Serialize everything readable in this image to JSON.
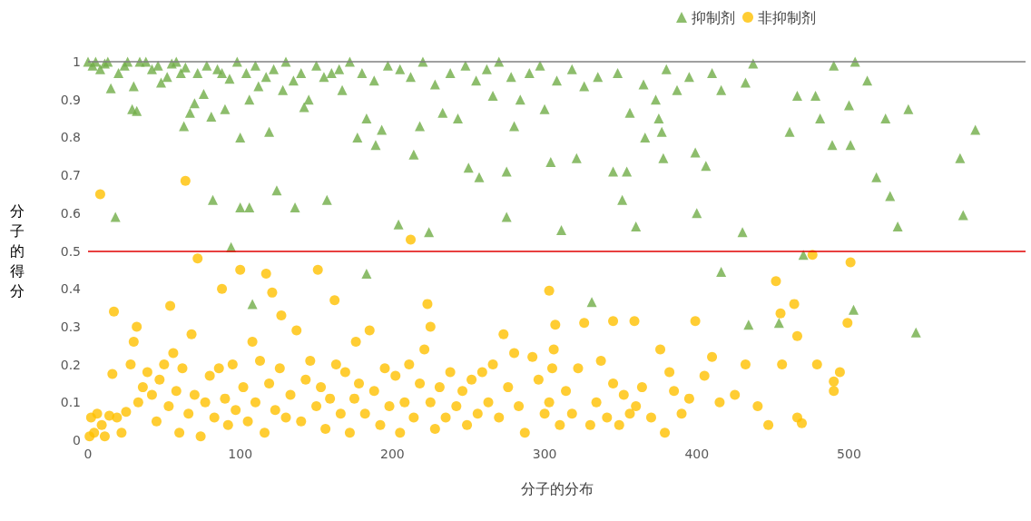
{
  "chart_data": {
    "type": "scatter",
    "xlabel": "分子的分布",
    "ylabel": "分子的得分",
    "xlim": [
      0,
      616
    ],
    "xticks": [
      0,
      100,
      200,
      300,
      400,
      500
    ],
    "ylim": [
      0,
      1
    ],
    "yticks": [
      0,
      0.1,
      0.2,
      0.3,
      0.4,
      0.5,
      0.6,
      0.7,
      0.8,
      0.9,
      1
    ],
    "grid": false,
    "legend": "top",
    "ref_lines": [
      {
        "axis": "y",
        "value": 0.5,
        "color": "#e00000"
      },
      {
        "axis": "y",
        "value": 1,
        "color": "#808080"
      }
    ],
    "series": [
      {
        "name": "抑制剂",
        "color": "#70ad47",
        "marker": "triangle",
        "x": [
          0,
          5,
          11,
          15,
          18,
          26,
          29,
          32,
          30,
          38,
          48,
          55,
          61,
          63,
          67,
          70,
          76,
          81,
          82,
          88,
          90,
          94,
          100,
          100,
          106,
          106,
          108,
          112,
          119,
          124,
          128,
          136,
          142,
          145,
          157,
          160,
          167,
          177,
          183,
          183,
          189,
          193,
          204,
          214,
          218,
          224,
          233,
          243,
          250,
          257,
          266,
          275,
          275,
          280,
          284,
          300,
          304,
          311,
          321,
          326,
          331,
          345,
          351,
          354,
          356,
          360,
          366,
          373,
          375,
          377,
          378,
          387,
          399,
          400,
          406,
          416,
          416,
          430,
          432,
          434,
          437,
          454,
          461,
          466,
          470,
          478,
          481,
          489,
          490,
          500,
          501,
          504,
          503,
          512,
          518,
          524,
          527,
          532,
          539,
          544,
          573,
          575,
          583,
          3,
          8,
          13,
          20,
          24,
          34,
          42,
          46,
          52,
          58,
          64,
          72,
          78,
          85,
          93,
          98,
          104,
          110,
          117,
          122,
          130,
          135,
          140,
          150,
          155,
          165,
          172,
          180,
          188,
          197,
          205,
          212,
          220,
          228,
          238,
          248,
          255,
          262,
          270,
          278,
          290,
          297,
          308,
          318,
          335,
          348,
          365,
          380,
          395,
          410
        ],
        "values": [
          1,
          1,
          0.995,
          0.93,
          0.59,
          1,
          0.875,
          0.87,
          0.935,
          1,
          0.945,
          0.995,
          0.97,
          0.83,
          0.865,
          0.89,
          0.915,
          0.855,
          0.635,
          0.97,
          0.875,
          0.51,
          0.8,
          0.615,
          0.615,
          0.9,
          0.36,
          0.935,
          0.815,
          0.66,
          0.925,
          0.615,
          0.88,
          0.9,
          0.635,
          0.97,
          0.925,
          0.8,
          0.85,
          0.44,
          0.78,
          0.82,
          0.57,
          0.755,
          0.83,
          0.55,
          0.865,
          0.85,
          0.72,
          0.695,
          0.91,
          0.59,
          0.71,
          0.83,
          0.9,
          0.875,
          0.735,
          0.555,
          0.745,
          0.935,
          0.365,
          0.71,
          0.635,
          0.71,
          0.865,
          0.565,
          0.8,
          0.9,
          0.85,
          0.815,
          0.745,
          0.925,
          0.76,
          0.6,
          0.725,
          0.445,
          0.925,
          0.55,
          0.945,
          0.305,
          0.995,
          0.31,
          0.815,
          0.91,
          0.49,
          0.91,
          0.85,
          0.78,
          0.99,
          0.885,
          0.78,
          1,
          0.345,
          0.95,
          0.695,
          0.85,
          0.645,
          0.565,
          0.875,
          0.285,
          0.745,
          0.595,
          0.82,
          0.99,
          0.98,
          1,
          0.97,
          0.99,
          1,
          0.98,
          0.99,
          0.96,
          1,
          0.985,
          0.97,
          0.99,
          0.98,
          0.955,
          1,
          0.97,
          0.99,
          0.96,
          0.98,
          1,
          0.95,
          0.97,
          0.99,
          0.96,
          0.98,
          1,
          0.97,
          0.95,
          0.99,
          0.98,
          0.96,
          1,
          0.94,
          0.97,
          0.99,
          0.95,
          0.98,
          1,
          0.96,
          0.97,
          0.99,
          0.95,
          0.98,
          0.96,
          0.97,
          0.94,
          0.98,
          0.96,
          0.97
        ]
      },
      {
        "name": "非抑制剂",
        "color": "#ffc000",
        "marker": "circle",
        "x": [
          8,
          64,
          212,
          17,
          32,
          54,
          72,
          100,
          88,
          117,
          121,
          127,
          151,
          162,
          176,
          223,
          225,
          305,
          307,
          345,
          359,
          399,
          303,
          464,
          499,
          501,
          476,
          452,
          455,
          456,
          466,
          466,
          469,
          479,
          490,
          494,
          490,
          1,
          2,
          4,
          6,
          9,
          11,
          14,
          16,
          19,
          22,
          25,
          28,
          30,
          33,
          36,
          39,
          42,
          45,
          47,
          50,
          53,
          56,
          58,
          60,
          62,
          66,
          68,
          70,
          74,
          77,
          80,
          83,
          86,
          90,
          92,
          95,
          97,
          102,
          105,
          108,
          110,
          113,
          116,
          119,
          123,
          126,
          130,
          133,
          137,
          140,
          143,
          146,
          150,
          153,
          156,
          159,
          163,
          166,
          169,
          172,
          175,
          178,
          182,
          185,
          188,
          192,
          195,
          198,
          202,
          205,
          208,
          211,
          214,
          218,
          221,
          225,
          228,
          231,
          235,
          238,
          242,
          246,
          249,
          252,
          256,
          259,
          263,
          266,
          270,
          273,
          276,
          280,
          283,
          287,
          292,
          296,
          300,
          303,
          306,
          310,
          314,
          318,
          322,
          326,
          330,
          334,
          337,
          341,
          345,
          349,
          352,
          356,
          360,
          364,
          370,
          376,
          379,
          382,
          385,
          390,
          395,
          405,
          410,
          415,
          425,
          432,
          440,
          447
        ],
        "values": [
          0.65,
          0.685,
          0.53,
          0.34,
          0.3,
          0.355,
          0.48,
          0.45,
          0.4,
          0.44,
          0.39,
          0.33,
          0.45,
          0.37,
          0.26,
          0.36,
          0.3,
          0.19,
          0.305,
          0.315,
          0.315,
          0.315,
          0.395,
          0.36,
          0.31,
          0.47,
          0.49,
          0.42,
          0.335,
          0.2,
          0.275,
          0.06,
          0.045,
          0.2,
          0.155,
          0.18,
          0.13,
          0.01,
          0.06,
          0.02,
          0.07,
          0.04,
          0.01,
          0.065,
          0.175,
          0.06,
          0.02,
          0.075,
          0.2,
          0.26,
          0.1,
          0.14,
          0.18,
          0.12,
          0.05,
          0.16,
          0.2,
          0.09,
          0.23,
          0.13,
          0.02,
          0.19,
          0.07,
          0.28,
          0.12,
          0.01,
          0.1,
          0.17,
          0.06,
          0.19,
          0.11,
          0.04,
          0.2,
          0.08,
          0.14,
          0.05,
          0.26,
          0.1,
          0.21,
          0.02,
          0.15,
          0.08,
          0.19,
          0.06,
          0.12,
          0.29,
          0.05,
          0.16,
          0.21,
          0.09,
          0.14,
          0.03,
          0.11,
          0.2,
          0.07,
          0.18,
          0.02,
          0.11,
          0.15,
          0.07,
          0.29,
          0.13,
          0.04,
          0.19,
          0.09,
          0.17,
          0.02,
          0.1,
          0.2,
          0.06,
          0.15,
          0.24,
          0.1,
          0.03,
          0.14,
          0.06,
          0.18,
          0.09,
          0.13,
          0.04,
          0.16,
          0.07,
          0.18,
          0.1,
          0.2,
          0.06,
          0.28,
          0.14,
          0.23,
          0.09,
          0.02,
          0.22,
          0.16,
          0.07,
          0.1,
          0.24,
          0.04,
          0.13,
          0.07,
          0.19,
          0.31,
          0.04,
          0.1,
          0.21,
          0.06,
          0.15,
          0.04,
          0.12,
          0.07,
          0.09,
          0.14,
          0.06,
          0.24,
          0.02,
          0.18,
          0.13,
          0.07,
          0.11,
          0.17,
          0.22,
          0.1,
          0.12,
          0.2,
          0.09,
          0.04
        ]
      }
    ]
  }
}
